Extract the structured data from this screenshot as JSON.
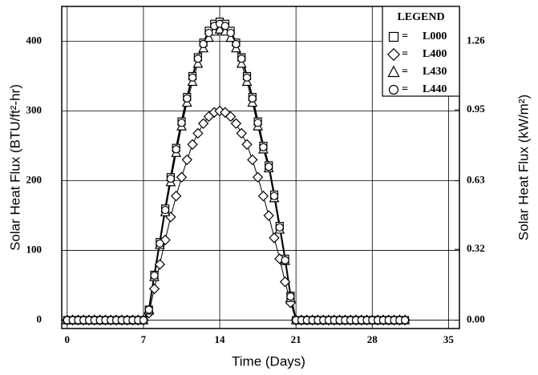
{
  "chart_data": {
    "type": "line",
    "xlabel": "Time (Days)",
    "ylabel": "Solar Heat Flux (BTU/ft²-hr)",
    "y2label": "Solar Heat Flux (kW/m²)",
    "legend_title": "LEGEND",
    "legend_separator": "=",
    "legend_position": "upper right",
    "grid": true,
    "xlim": [
      -0.5,
      36
    ],
    "ylim": [
      -12,
      450
    ],
    "y2lim": [
      -0.0378,
      1.4175
    ],
    "xticks": [
      0,
      7,
      14,
      21,
      28,
      35
    ],
    "yticks": [
      0,
      100,
      200,
      300,
      400
    ],
    "y2ticks": [
      {
        "value": 0,
        "label": "0.00"
      },
      {
        "value": 0.32,
        "label": "0.32"
      },
      {
        "value": 0.63,
        "label": "0.63"
      },
      {
        "value": 0.95,
        "label": "0.95"
      },
      {
        "value": 1.26,
        "label": "1.26"
      }
    ],
    "x": [
      0,
      0.5,
      1,
      1.5,
      2,
      2.5,
      3,
      3.5,
      4,
      4.5,
      5,
      5.5,
      6,
      6.5,
      7,
      7.5,
      8,
      8.5,
      9,
      9.5,
      10,
      10.5,
      11,
      11.5,
      12,
      12.5,
      13,
      13.5,
      14,
      14.5,
      15,
      15.5,
      16,
      16.5,
      17,
      17.5,
      18,
      18.5,
      19,
      19.5,
      20,
      20.5,
      21,
      21.5,
      22,
      22.5,
      23,
      23.5,
      24,
      24.5,
      25,
      25.5,
      26,
      26.5,
      27,
      27.5,
      28,
      28.5,
      29,
      29.5,
      30,
      30.5,
      31
    ],
    "series": [
      {
        "name": "L000",
        "color": "#000000",
        "marker": "square",
        "line_width": 2,
        "values": [
          0,
          0,
          0,
          0,
          0,
          0,
          0,
          0,
          0,
          0,
          0,
          0,
          0,
          0,
          0,
          15,
          65,
          112,
          160,
          205,
          247,
          285,
          320,
          350,
          377,
          398,
          415,
          425,
          428,
          425,
          415,
          398,
          377,
          350,
          320,
          285,
          250,
          222,
          180,
          135,
          88,
          35,
          0,
          0,
          0,
          0,
          0,
          0,
          0,
          0,
          0,
          0,
          0,
          0,
          0,
          0,
          0,
          0,
          0,
          0,
          0,
          0,
          0
        ]
      },
      {
        "name": "L400",
        "color": "#000000",
        "marker": "diamond",
        "line_width": 1,
        "values": [
          0,
          0,
          0,
          0,
          0,
          0,
          0,
          0,
          0,
          0,
          0,
          0,
          0,
          0,
          0,
          10,
          45,
          80,
          115,
          148,
          178,
          205,
          230,
          252,
          268,
          282,
          292,
          298,
          300,
          298,
          292,
          282,
          268,
          252,
          230,
          205,
          178,
          150,
          118,
          88,
          55,
          25,
          0,
          0,
          0,
          0,
          0,
          0,
          0,
          0,
          0,
          0,
          0,
          0,
          0,
          0,
          0,
          0,
          0,
          0,
          0,
          0,
          0
        ]
      },
      {
        "name": "L430",
        "color": "#000000",
        "marker": "triangle",
        "line_width": 1,
        "values": [
          0,
          0,
          0,
          0,
          0,
          0,
          0,
          0,
          0,
          0,
          0,
          0,
          0,
          0,
          0,
          14,
          62,
          108,
          155,
          198,
          240,
          278,
          312,
          342,
          368,
          390,
          405,
          414,
          417,
          414,
          405,
          390,
          368,
          342,
          312,
          278,
          245,
          218,
          175,
          130,
          85,
          32,
          0,
          0,
          0,
          0,
          0,
          0,
          0,
          0,
          0,
          0,
          0,
          0,
          0,
          0,
          0,
          0,
          0,
          0,
          0,
          0,
          0
        ]
      },
      {
        "name": "L440",
        "color": "#000000",
        "marker": "circle",
        "line_width": 1,
        "values": [
          0,
          0,
          0,
          0,
          0,
          0,
          0,
          0,
          0,
          0,
          0,
          0,
          0,
          0,
          0,
          15,
          64,
          110,
          158,
          203,
          245,
          283,
          318,
          348,
          375,
          396,
          412,
          422,
          425,
          422,
          412,
          396,
          375,
          348,
          318,
          283,
          248,
          220,
          178,
          133,
          86,
          34,
          0,
          0,
          0,
          0,
          0,
          0,
          0,
          0,
          0,
          0,
          0,
          0,
          0,
          0,
          0,
          0,
          0,
          0,
          0,
          0,
          0
        ]
      }
    ]
  }
}
